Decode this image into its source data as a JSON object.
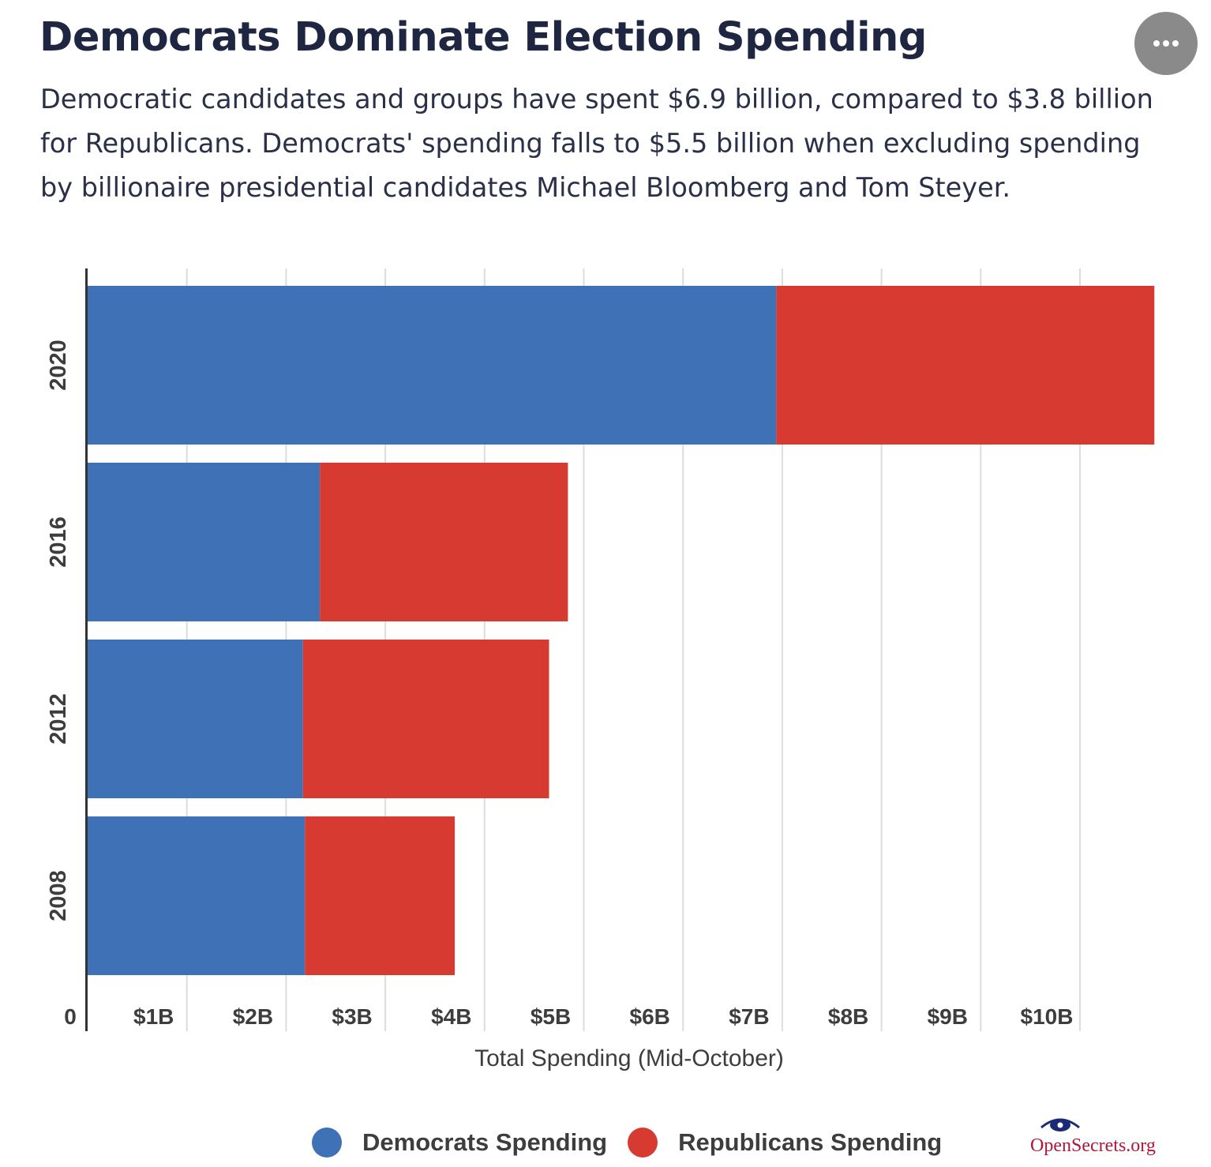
{
  "header": {
    "title": "Democrats Dominate Election Spending",
    "subtitle": "Democratic candidates and groups have spent $6.9 billion, compared to $3.8 billion for Republicans. Democrats' spending falls to $5.5 billion when excluding spending by billionaire presidential candidates Michael Bloomberg and Tom Steyer."
  },
  "menu": {
    "icon": "ellipsis-icon",
    "label": "•••"
  },
  "chart_data": {
    "type": "bar",
    "orientation": "horizontal",
    "stacked": true,
    "categories": [
      "2020",
      "2016",
      "2012",
      "2008"
    ],
    "series": [
      {
        "name": "Democrats Spending",
        "color": "#3f71b6",
        "values": [
          6.94,
          2.34,
          2.17,
          2.19
        ]
      },
      {
        "name": "Republicans Spending",
        "color": "#d63a31",
        "values": [
          3.81,
          2.5,
          2.48,
          1.51
        ]
      }
    ],
    "xlim": [
      0,
      10.8
    ],
    "xticks": [
      0,
      1,
      2,
      3,
      4,
      5,
      6,
      7,
      8,
      9,
      10
    ],
    "xtick_labels": [
      "0",
      "$1B",
      "$2B",
      "$3B",
      "$4B",
      "$5B",
      "$6B",
      "$7B",
      "$8B",
      "$9B",
      "$10B"
    ],
    "xlabel": "Total Spending (Mid-October)",
    "ylabel": "",
    "grid": true,
    "legend_position": "bottom"
  },
  "footer": {
    "brand": "OpenSecrets.org"
  }
}
